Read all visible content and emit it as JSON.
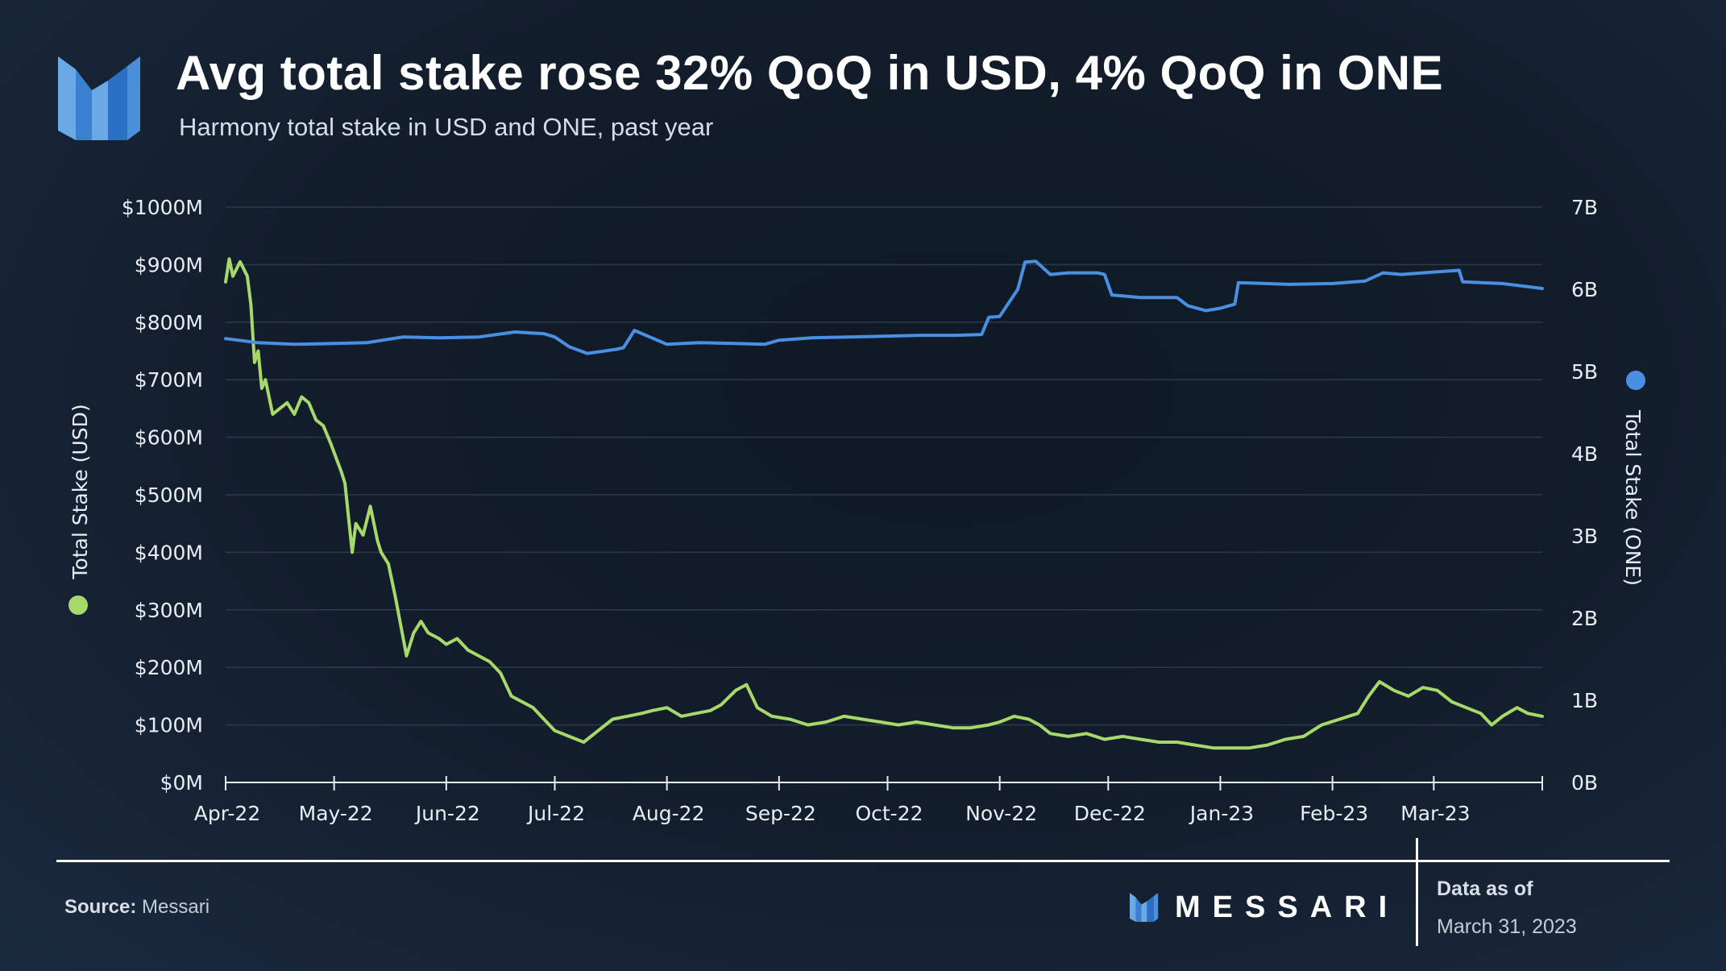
{
  "header": {
    "title": "Avg total stake rose 32% QoQ in USD, 4% QoQ in ONE",
    "subtitle": "Harmony total stake in USD and ONE, past year"
  },
  "footer": {
    "source_label": "Source:",
    "source_value": "Messari",
    "brand": "MESSARI",
    "data_as_of_label": "Data as of",
    "data_as_of_date": "March 31, 2023"
  },
  "colors": {
    "usd_series": "#a6d96a",
    "one_series": "#4a90e2",
    "logo_light": "#5aa0e0",
    "logo_dark": "#2a6fc4"
  },
  "chart_data": {
    "type": "line",
    "title": "Avg total stake rose 32% QoQ in USD, 4% QoQ in ONE",
    "subtitle": "Harmony total stake in USD and ONE, past year",
    "x_tick_labels": [
      "Apr-22",
      "May-22",
      "Jun-22",
      "Jul-22",
      "Aug-22",
      "Sep-22",
      "Oct-22",
      "Nov-22",
      "Dec-22",
      "Jan-23",
      "Feb-23",
      "Mar-23"
    ],
    "x_range": [
      "2022-04-01",
      "2023-03-31"
    ],
    "y_left": {
      "label": "Total Stake (USD)",
      "range": [
        0,
        1000
      ],
      "tick_labels": [
        "$0M",
        "$100M",
        "$200M",
        "$300M",
        "$400M",
        "$500M",
        "$600M",
        "$700M",
        "$800M",
        "$900M",
        "$1000M"
      ]
    },
    "y_right": {
      "label": "Total Stake (ONE)",
      "range": [
        0,
        7
      ],
      "tick_labels": [
        "0B",
        "1B",
        "2B",
        "3B",
        "4B",
        "5B",
        "6B",
        "7B"
      ]
    },
    "grid": "horizontal",
    "series": [
      {
        "axis": "left",
        "unit": "USD millions",
        "x": [
          "2022-04-01",
          "2022-04-02",
          "2022-04-03",
          "2022-04-05",
          "2022-04-07",
          "2022-04-08",
          "2022-04-09",
          "2022-04-10",
          "2022-04-11",
          "2022-04-12",
          "2022-04-14",
          "2022-04-16",
          "2022-04-18",
          "2022-04-20",
          "2022-04-22",
          "2022-04-24",
          "2022-04-26",
          "2022-04-28",
          "2022-04-30",
          "2022-05-03",
          "2022-05-04",
          "2022-05-06",
          "2022-05-07",
          "2022-05-09",
          "2022-05-11",
          "2022-05-13",
          "2022-05-14",
          "2022-05-16",
          "2022-05-18",
          "2022-05-21",
          "2022-05-23",
          "2022-05-25",
          "2022-05-27",
          "2022-05-30",
          "2022-06-01",
          "2022-06-04",
          "2022-06-07",
          "2022-06-10",
          "2022-06-13",
          "2022-06-16",
          "2022-06-19",
          "2022-06-22",
          "2022-06-25",
          "2022-06-28",
          "2022-07-01",
          "2022-07-05",
          "2022-07-09",
          "2022-07-13",
          "2022-07-17",
          "2022-07-21",
          "2022-07-25",
          "2022-07-28",
          "2022-08-01",
          "2022-08-05",
          "2022-08-09",
          "2022-08-13",
          "2022-08-16",
          "2022-08-20",
          "2022-08-23",
          "2022-08-26",
          "2022-08-30",
          "2022-09-04",
          "2022-09-09",
          "2022-09-14",
          "2022-09-19",
          "2022-09-24",
          "2022-09-29",
          "2022-10-04",
          "2022-10-09",
          "2022-10-14",
          "2022-10-19",
          "2022-10-24",
          "2022-10-29",
          "2022-11-01",
          "2022-11-05",
          "2022-11-09",
          "2022-11-12",
          "2022-11-15",
          "2022-11-20",
          "2022-11-25",
          "2022-11-30",
          "2022-12-05",
          "2022-12-10",
          "2022-12-15",
          "2022-12-20",
          "2022-12-25",
          "2022-12-30",
          "2023-01-04",
          "2023-01-09",
          "2023-01-14",
          "2023-01-19",
          "2023-01-24",
          "2023-01-29",
          "2023-02-03",
          "2023-02-08",
          "2023-02-11",
          "2023-02-14",
          "2023-02-18",
          "2023-02-22",
          "2023-02-26",
          "2023-03-02",
          "2023-03-06",
          "2023-03-10",
          "2023-03-14",
          "2023-03-17",
          "2023-03-20",
          "2023-03-24",
          "2023-03-27",
          "2023-03-31"
        ],
        "values": [
          870,
          910,
          880,
          905,
          880,
          830,
          730,
          750,
          685,
          700,
          640,
          650,
          660,
          640,
          670,
          660,
          630,
          620,
          590,
          540,
          520,
          400,
          450,
          430,
          480,
          420,
          400,
          380,
          320,
          220,
          260,
          280,
          260,
          250,
          240,
          250,
          230,
          220,
          210,
          190,
          150,
          140,
          130,
          110,
          90,
          80,
          70,
          90,
          110,
          115,
          120,
          125,
          130,
          115,
          120,
          125,
          135,
          160,
          170,
          130,
          115,
          110,
          100,
          105,
          115,
          110,
          105,
          100,
          105,
          100,
          95,
          95,
          100,
          105,
          115,
          110,
          100,
          85,
          80,
          85,
          75,
          80,
          75,
          70,
          70,
          65,
          60,
          60,
          60,
          65,
          75,
          80,
          100,
          110,
          120,
          150,
          175,
          160,
          150,
          165,
          160,
          140,
          130,
          120,
          100,
          115,
          130,
          120,
          115
        ]
      },
      {
        "axis": "right",
        "unit": "ONE billions",
        "x": [
          "2022-04-01",
          "2022-04-10",
          "2022-04-20",
          "2022-05-01",
          "2022-05-10",
          "2022-05-20",
          "2022-05-30",
          "2022-06-10",
          "2022-06-20",
          "2022-06-28",
          "2022-07-01",
          "2022-07-05",
          "2022-07-10",
          "2022-07-18",
          "2022-07-20",
          "2022-07-23",
          "2022-08-01",
          "2022-08-10",
          "2022-08-20",
          "2022-08-28",
          "2022-09-01",
          "2022-09-10",
          "2022-09-20",
          "2022-10-01",
          "2022-10-10",
          "2022-10-20",
          "2022-10-27",
          "2022-10-29",
          "2022-11-01",
          "2022-11-06",
          "2022-11-08",
          "2022-11-11",
          "2022-11-15",
          "2022-11-20",
          "2022-11-25",
          "2022-11-28",
          "2022-11-30",
          "2022-12-02",
          "2022-12-10",
          "2022-12-20",
          "2022-12-23",
          "2022-12-28",
          "2023-01-01",
          "2023-01-05",
          "2023-01-06",
          "2023-01-20",
          "2023-02-01",
          "2023-02-10",
          "2023-02-15",
          "2023-02-20",
          "2023-03-01",
          "2023-03-08",
          "2023-03-09",
          "2023-03-20",
          "2023-03-31"
        ],
        "values": [
          5.4,
          5.35,
          5.33,
          5.34,
          5.35,
          5.42,
          5.41,
          5.42,
          5.48,
          5.46,
          5.42,
          5.3,
          5.22,
          5.27,
          5.29,
          5.5,
          5.33,
          5.35,
          5.34,
          5.33,
          5.38,
          5.41,
          5.42,
          5.43,
          5.44,
          5.44,
          5.45,
          5.66,
          5.67,
          6.0,
          6.33,
          6.34,
          6.18,
          6.2,
          6.2,
          6.2,
          6.18,
          5.93,
          5.9,
          5.9,
          5.8,
          5.74,
          5.77,
          5.82,
          6.08,
          6.06,
          6.07,
          6.1,
          6.2,
          6.18,
          6.21,
          6.23,
          6.09,
          6.07,
          6.01
        ]
      }
    ]
  }
}
